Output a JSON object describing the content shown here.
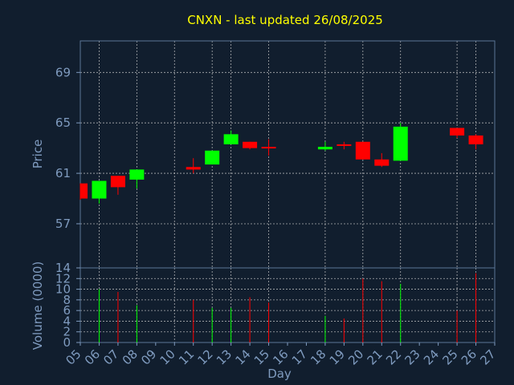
{
  "chart_data": {
    "type": "candlestick",
    "title": "CNXN - last updated 26/08/2025",
    "xlabel": "Day",
    "price_axis": {
      "label": "Price",
      "ticks": [
        57,
        61,
        65,
        69
      ],
      "ylim": [
        53.5,
        71.5
      ]
    },
    "volume_axis": {
      "label": "Volume (0000)",
      "ticks": [
        0,
        2,
        4,
        6,
        8,
        10,
        12,
        14
      ],
      "ylim": [
        0,
        14
      ]
    },
    "x_ticks": [
      "05",
      "06",
      "07",
      "08",
      "09",
      "10",
      "11",
      "12",
      "13",
      "14",
      "15",
      "16",
      "17",
      "18",
      "19",
      "20",
      "21",
      "22",
      "23",
      "24",
      "25",
      "26",
      "27"
    ],
    "x_gridlines": [
      "06",
      "08",
      "10",
      "12",
      "13",
      "15",
      "18",
      "20",
      "22",
      "25",
      "26"
    ],
    "grid": true,
    "colors": {
      "up": "#00ff00",
      "down": "#ff0000",
      "background": "#111e2e",
      "title": "#ffff00",
      "axis": "#7f9bbf"
    },
    "candles": [
      {
        "day": "05",
        "open": 60.2,
        "high": 60.2,
        "low": 58.9,
        "close": 59.0,
        "volume": 0
      },
      {
        "day": "06",
        "open": 59.0,
        "high": 60.4,
        "low": 58.6,
        "close": 60.4,
        "volume": 10.0
      },
      {
        "day": "07",
        "open": 60.8,
        "high": 60.8,
        "low": 59.3,
        "close": 59.9,
        "volume": 9.5
      },
      {
        "day": "08",
        "open": 60.5,
        "high": 61.3,
        "low": 59.8,
        "close": 61.3,
        "volume": 7.0
      },
      {
        "day": "11",
        "open": 61.5,
        "high": 62.2,
        "low": 61.0,
        "close": 61.3,
        "volume": 8.0
      },
      {
        "day": "12",
        "open": 61.7,
        "high": 62.8,
        "low": 61.7,
        "close": 62.8,
        "volume": 6.5
      },
      {
        "day": "13",
        "open": 63.3,
        "high": 64.4,
        "low": 63.3,
        "close": 64.1,
        "volume": 6.5
      },
      {
        "day": "14",
        "open": 63.5,
        "high": 63.5,
        "low": 62.9,
        "close": 63.0,
        "volume": 8.5
      },
      {
        "day": "15",
        "open": 63.1,
        "high": 63.7,
        "low": 62.4,
        "close": 63.0,
        "volume": 7.5
      },
      {
        "day": "18",
        "open": 62.9,
        "high": 63.5,
        "low": 62.8,
        "close": 63.1,
        "volume": 5.0
      },
      {
        "day": "19",
        "open": 63.3,
        "high": 63.5,
        "low": 62.9,
        "close": 63.2,
        "volume": 4.5
      },
      {
        "day": "20",
        "open": 63.5,
        "high": 63.5,
        "low": 62.1,
        "close": 62.1,
        "volume": 12.0
      },
      {
        "day": "21",
        "open": 62.1,
        "high": 62.6,
        "low": 61.5,
        "close": 61.6,
        "volume": 11.5
      },
      {
        "day": "22",
        "open": 62.0,
        "high": 65.0,
        "low": 62.0,
        "close": 64.7,
        "volume": 11.0
      },
      {
        "day": "25",
        "open": 64.6,
        "high": 64.6,
        "low": 63.8,
        "close": 64.0,
        "volume": 6.0
      },
      {
        "day": "26",
        "open": 64.0,
        "high": 64.1,
        "low": 62.9,
        "close": 63.3,
        "volume": 13.0
      }
    ]
  }
}
